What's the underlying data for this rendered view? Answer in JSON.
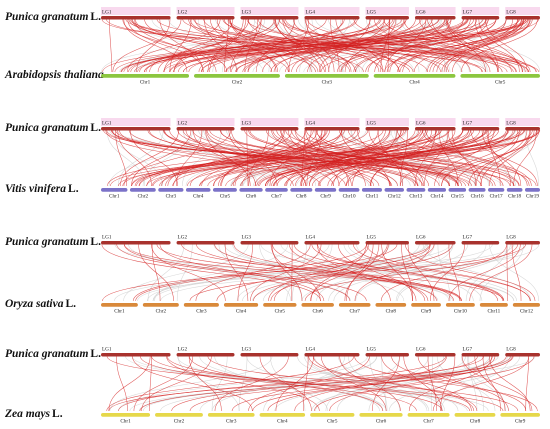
{
  "panels": [
    {
      "top_species": {
        "name": "Punica granatum",
        "authority": "L."
      },
      "bottom_species": {
        "name": "Arabidopsis thaliana",
        "authority": ""
      },
      "top_labels": [
        "LG1",
        "LG2",
        "LG3",
        "LG4",
        "LG5",
        "LG6",
        "LG7",
        "LG8"
      ],
      "bottom_labels": [
        "Chr1",
        "Chr2",
        "Chr3",
        "Chr4",
        "Chr5"
      ],
      "bottom_bar_color": "#8cc63f",
      "link_count": 150
    },
    {
      "top_species": {
        "name": "Punica granatum",
        "authority": "L."
      },
      "bottom_species": {
        "name": "Vitis vinifera",
        "authority": "L."
      },
      "top_labels": [
        "LG1",
        "LG2",
        "LG3",
        "LG4",
        "LG5",
        "LG6",
        "LG7",
        "LG8"
      ],
      "bottom_labels": [
        "Chr1",
        "Chr2",
        "Chr3",
        "Chr4",
        "Chr5",
        "Chr6",
        "Chr7",
        "Chr8",
        "Chr9",
        "Chr10",
        "Chr11",
        "Chr12",
        "Chr13",
        "Chr14",
        "Chr15",
        "Chr16",
        "Chr17",
        "Chr18",
        "Chr19"
      ],
      "bottom_bar_color": "#7b72c8",
      "link_count": 160
    },
    {
      "top_species": {
        "name": "Punica granatum",
        "authority": "L."
      },
      "bottom_species": {
        "name": "Oryza sativa",
        "authority": "L."
      },
      "top_labels": [
        "LG1",
        "LG2",
        "LG3",
        "LG4",
        "LG5",
        "LG6",
        "LG7",
        "LG8"
      ],
      "bottom_labels": [
        "Chr1",
        "Chr2",
        "Chr3",
        "Chr4",
        "Chr5",
        "Chr6",
        "Chr7",
        "Chr8",
        "Chr9",
        "Chr10",
        "Chr11",
        "Chr12"
      ],
      "bottom_bar_color": "#d9893a",
      "link_count": 55
    },
    {
      "top_species": {
        "name": "Punica granatum",
        "authority": "L."
      },
      "bottom_species": {
        "name": "Zea mays",
        "authority": "L."
      },
      "top_labels": [
        "LG1",
        "LG2",
        "LG3",
        "LG4",
        "LG5",
        "LG6",
        "LG7",
        "LG8"
      ],
      "bottom_labels": [
        "Chr1",
        "Chr2",
        "Chr3",
        "Chr4",
        "Chr5",
        "Chr6",
        "Chr7",
        "Chr8",
        "Chr9"
      ],
      "bottom_bar_color": "#e6d84a",
      "link_count": 50
    }
  ],
  "colors": {
    "top_bar": "#a8322d",
    "link_highlight": "#d42020",
    "link_background": "#d0d0d0",
    "label_highlight": "#f4c0e2"
  }
}
